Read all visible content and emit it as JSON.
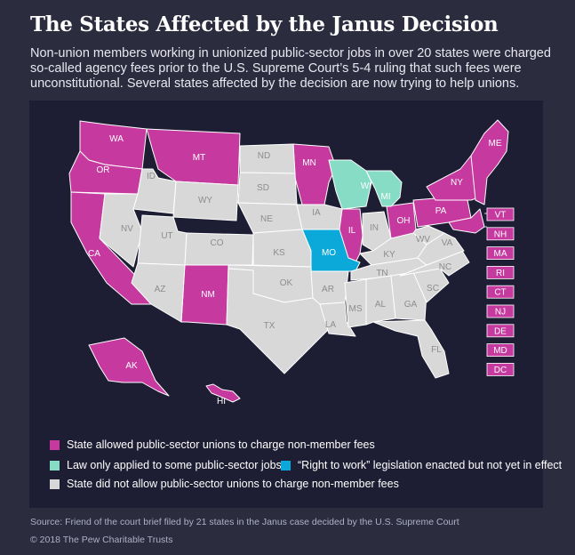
{
  "title": "The States Affected by the Janus Decision",
  "subtitle": "Non-union members working in unionized public-sector jobs in over 20 states were charged so-called agency fees prior to the U.S. Supreme Court’s 5-4 ruling that such fees were unconstitutional. Several states affected by the decision are now trying to help unions.",
  "colors": {
    "allowed": "#c6399f",
    "partial": "#86dcc4",
    "right_to_work": "#0aa9d9",
    "not_allowed": "#d8d8d8"
  },
  "legend": {
    "allowed": "State allowed public-sector unions to charge non-member fees",
    "partial": "Law only applied to some public-sector jobs",
    "right_to_work": "“Right to work” legislation enacted but not yet in effect",
    "not_allowed": "State did not allow public-sector unions to charge non-member fees"
  },
  "state_labels": {
    "WA": "WA",
    "OR": "OR",
    "CA": "CA",
    "MT": "MT",
    "ID": "ID",
    "NV": "NV",
    "WY": "WY",
    "UT": "UT",
    "AZ": "AZ",
    "CO": "CO",
    "NM": "NM",
    "ND": "ND",
    "SD": "SD",
    "NE": "NE",
    "KS": "KS",
    "OK": "OK",
    "TX": "TX",
    "MN": "MN",
    "IA": "IA",
    "MO": "MO",
    "AR": "AR",
    "LA": "LA",
    "WI": "WI",
    "IL": "IL",
    "MI": "MI",
    "IN": "IN",
    "OH": "OH",
    "KY": "KY",
    "TN": "TN",
    "MS": "MS",
    "AL": "AL",
    "GA": "GA",
    "FL": "FL",
    "SC": "SC",
    "NC": "NC",
    "VA": "VA",
    "WV": "WV",
    "PA": "PA",
    "NY": "NY",
    "ME": "ME",
    "AK": "AK",
    "HI": "HI"
  },
  "callouts": [
    "VT",
    "NH",
    "MA",
    "RI",
    "CT",
    "NJ",
    "DE",
    "MD",
    "DC"
  ],
  "source": "Source: Friend of the court brief filed by 21 states in the Janus case decided by the U.S. Supreme Court",
  "copyright": "© 2018 The Pew Charitable Trusts"
}
